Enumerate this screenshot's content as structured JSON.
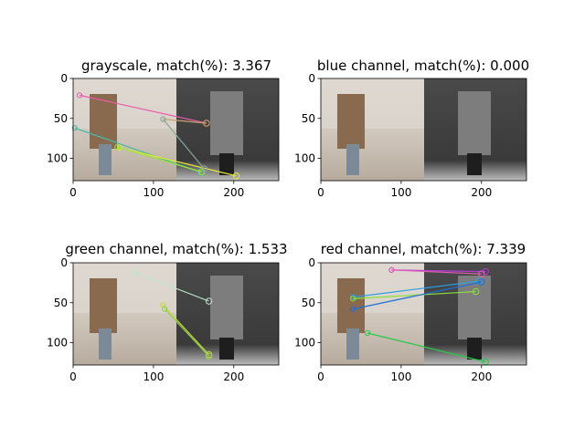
{
  "chart_data": [
    {
      "type": "image",
      "title": "grayscale, match(%): 3.367",
      "channel": "grayscale",
      "match_percent": 3.367,
      "xlim": [
        0,
        256
      ],
      "ylim": [
        128,
        0
      ],
      "xticks": [
        0,
        100,
        200
      ],
      "yticks": [
        0,
        50,
        100
      ],
      "matches": [
        {
          "from": [
            8,
            21
          ],
          "to": [
            166,
            56
          ],
          "color": "#e85aa8"
        },
        {
          "from": [
            112,
            51
          ],
          "to": [
            166,
            56
          ],
          "color": "#c7a26b"
        },
        {
          "from": [
            2,
            62
          ],
          "to": [
            160,
            118
          ],
          "color": "#4ab8a2"
        },
        {
          "from": [
            58,
            87
          ],
          "to": [
            203,
            122
          ],
          "color": "#e3e83a"
        },
        {
          "from": [
            55,
            86
          ],
          "to": [
            160,
            117
          ],
          "color": "#9be23f"
        },
        {
          "from": [
            112,
            51
          ],
          "to": [
            163,
            113
          ],
          "color": "#88a89a"
        }
      ]
    },
    {
      "type": "image",
      "title": "blue channel, match(%): 0.000",
      "channel": "blue",
      "match_percent": 0.0,
      "xlim": [
        0,
        256
      ],
      "ylim": [
        128,
        0
      ],
      "xticks": [
        0,
        100,
        200
      ],
      "yticks": [
        0,
        50,
        100
      ],
      "matches": []
    },
    {
      "type": "image",
      "title": "green channel, match(%): 1.533",
      "channel": "green",
      "match_percent": 1.533,
      "xlim": [
        0,
        256
      ],
      "ylim": [
        128,
        0
      ],
      "xticks": [
        0,
        100,
        200
      ],
      "yticks": [
        0,
        50,
        100
      ],
      "matches": [
        {
          "from": [
            76,
            12
          ],
          "to": [
            169,
            48
          ],
          "color": "#b9e6c8"
        },
        {
          "from": [
            112,
            53
          ],
          "to": [
            169,
            115
          ],
          "color": "#c2d83e"
        },
        {
          "from": [
            114,
            58
          ],
          "to": [
            169,
            117
          ],
          "color": "#8fd04a"
        }
      ]
    },
    {
      "type": "image",
      "title": "red channel, match(%): 7.339",
      "channel": "red",
      "match_percent": 7.339,
      "xlim": [
        0,
        256
      ],
      "ylim": [
        128,
        0
      ],
      "xticks": [
        0,
        100,
        200
      ],
      "yticks": [
        0,
        50,
        100
      ],
      "matches": [
        {
          "from": [
            88,
            9
          ],
          "to": [
            205,
            11
          ],
          "color": "#b43bd0"
        },
        {
          "from": [
            88,
            9
          ],
          "to": [
            200,
            14
          ],
          "color": "#e060b8"
        },
        {
          "from": [
            40,
            43
          ],
          "to": [
            197,
            23
          ],
          "color": "#2da0e6"
        },
        {
          "from": [
            40,
            45
          ],
          "to": [
            193,
            36
          ],
          "color": "#88e03a"
        },
        {
          "from": [
            40,
            58
          ],
          "to": [
            200,
            24
          ],
          "color": "#1f6fd6"
        },
        {
          "from": [
            58,
            88
          ],
          "to": [
            205,
            124
          ],
          "color": "#27c94a"
        }
      ]
    }
  ]
}
